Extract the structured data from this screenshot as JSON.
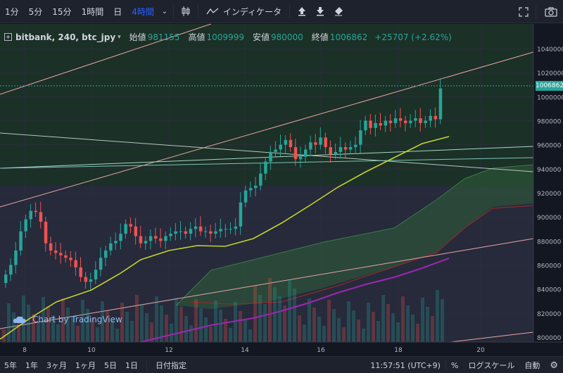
{
  "toolbar": {
    "intervals": [
      "1分",
      "5分",
      "15分",
      "1時間",
      "日",
      "4時間"
    ],
    "active_interval": "4時間",
    "indicators_label": "インディケータ"
  },
  "legend": {
    "symbol": "bitbank, 240, btc_jpy",
    "open_label": "始値",
    "open_value": "981155",
    "high_label": "高値",
    "high_value": "1009999",
    "low_label": "安値",
    "low_value": "980000",
    "close_label": "終値",
    "close_value": "1006862",
    "change": "+25707 (+2.62%)"
  },
  "watermark": "Chart by TradingView",
  "last_price_tag": "1006862",
  "chart_data": {
    "type": "candlestick",
    "title": "",
    "y_axis_ticks": [
      1040000,
      1020000,
      1000000,
      980000,
      960000,
      940000,
      920000,
      900000,
      880000,
      860000,
      840000,
      820000,
      800000
    ],
    "x_axis_ticks": [
      "8",
      "10",
      "12",
      "14",
      "16",
      "18",
      "20"
    ],
    "ylim": [
      800000,
      1045000
    ],
    "colors": {
      "up": "#26a69a",
      "down": "#ef5350",
      "ma": "#c6d32c",
      "long_ma": "#9c27b0"
    }
  },
  "bottombar": {
    "ranges": [
      "5年",
      "1年",
      "3ヶ月",
      "1ヶ月",
      "5日",
      "1日"
    ],
    "goto_date": "日付指定",
    "time": "11:57:51 (UTC+9)",
    "percent": "%",
    "log_scale": "ログスケール",
    "auto": "自動"
  }
}
